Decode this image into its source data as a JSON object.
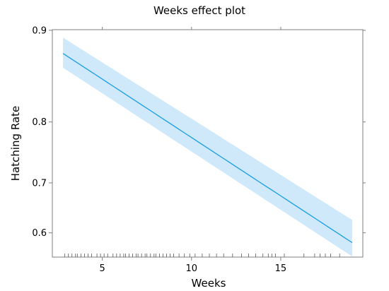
{
  "chart_data": {
    "type": "line",
    "title": "Weeks effect plot",
    "xlabel": "Weeks",
    "ylabel": "Hatching Rate",
    "xlim": [
      2.2,
      19.6
    ],
    "ylim": [
      0.5475,
      0.9005
    ],
    "y_scale": "logit",
    "x_ticks": [
      5,
      10,
      15
    ],
    "y_ticks": [
      0.6,
      0.7,
      0.8,
      0.9
    ],
    "x_tick_labels": [
      "5",
      "10",
      "15"
    ],
    "y_tick_labels": [
      "0.6",
      "0.7",
      "0.8",
      "0.9"
    ],
    "grid": false,
    "series": [
      {
        "x": [
          2.8,
          19.0
        ],
        "y": [
          0.88,
          0.579
        ],
        "lower": [
          0.866,
          0.549
        ],
        "upper": [
          0.894,
          0.627
        ],
        "color": "#1a9ee0",
        "band_color": "#cfe9fb"
      }
    ],
    "rug_x": [
      2.9,
      3.1,
      3.3,
      3.5,
      3.6,
      3.8,
      4.0,
      4.2,
      4.4,
      4.7,
      4.9,
      5.1,
      5.3,
      5.6,
      5.8,
      6.0,
      6.2,
      6.3,
      6.5,
      6.7,
      6.9,
      7.0,
      7.2,
      7.4,
      7.5,
      7.7,
      7.9,
      8.0,
      8.2,
      8.4,
      8.6,
      8.8,
      9.0,
      9.3,
      9.6,
      9.9,
      10.2,
      10.6,
      11.0,
      11.4,
      11.8,
      12.3,
      12.8,
      13.2,
      13.6,
      14.0,
      14.3,
      14.5,
      14.7,
      15.2,
      16.3,
      16.9,
      17.2,
      17.5,
      17.8,
      18.3
    ]
  }
}
